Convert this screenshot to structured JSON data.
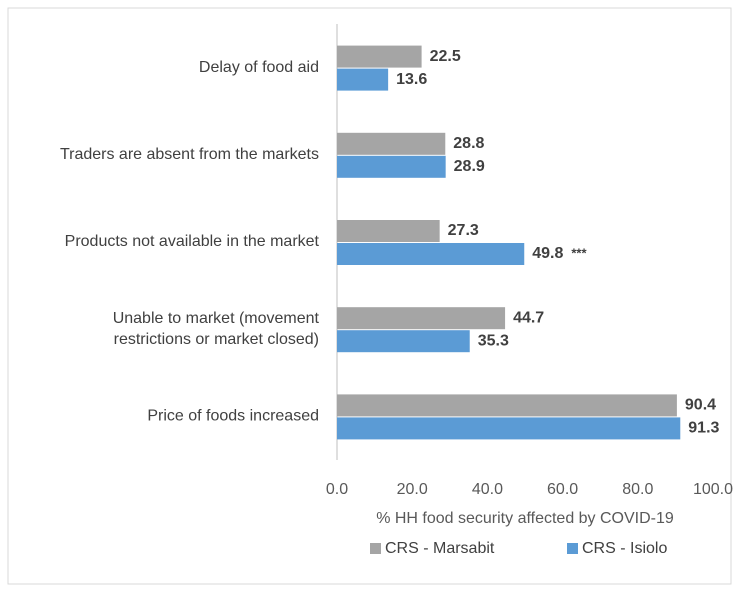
{
  "chart_data": {
    "type": "hbar",
    "categories": [
      "Delay of food aid",
      "Traders are absent from the markets",
      "Products not available in the market",
      [
        "Unable to market (movement",
        "restrictions or market closed)"
      ],
      "Price of foods increased"
    ],
    "series": [
      {
        "name": "CRS - Marsabit",
        "color": "#a5a5a5",
        "values": [
          22.5,
          28.8,
          27.3,
          44.7,
          90.4
        ]
      },
      {
        "name": "CRS - Isiolo",
        "color": "#5b9bd5",
        "values": [
          13.6,
          28.9,
          49.8,
          35.3,
          91.3
        ]
      }
    ],
    "annotations": [
      {
        "text": "***",
        "series": 1,
        "index": 2
      }
    ],
    "xlabel": "% HH food security affected by COVID-19",
    "xlim": [
      0,
      100
    ],
    "xticks": [
      {
        "value": 0,
        "label": "0.0"
      },
      {
        "value": 20,
        "label": "20.0"
      },
      {
        "value": 40,
        "label": "40.0"
      },
      {
        "value": 60,
        "label": "60.0"
      },
      {
        "value": 80,
        "label": "80.0"
      },
      {
        "value": 100,
        "label": "100.0"
      }
    ],
    "legend": "bottom"
  }
}
